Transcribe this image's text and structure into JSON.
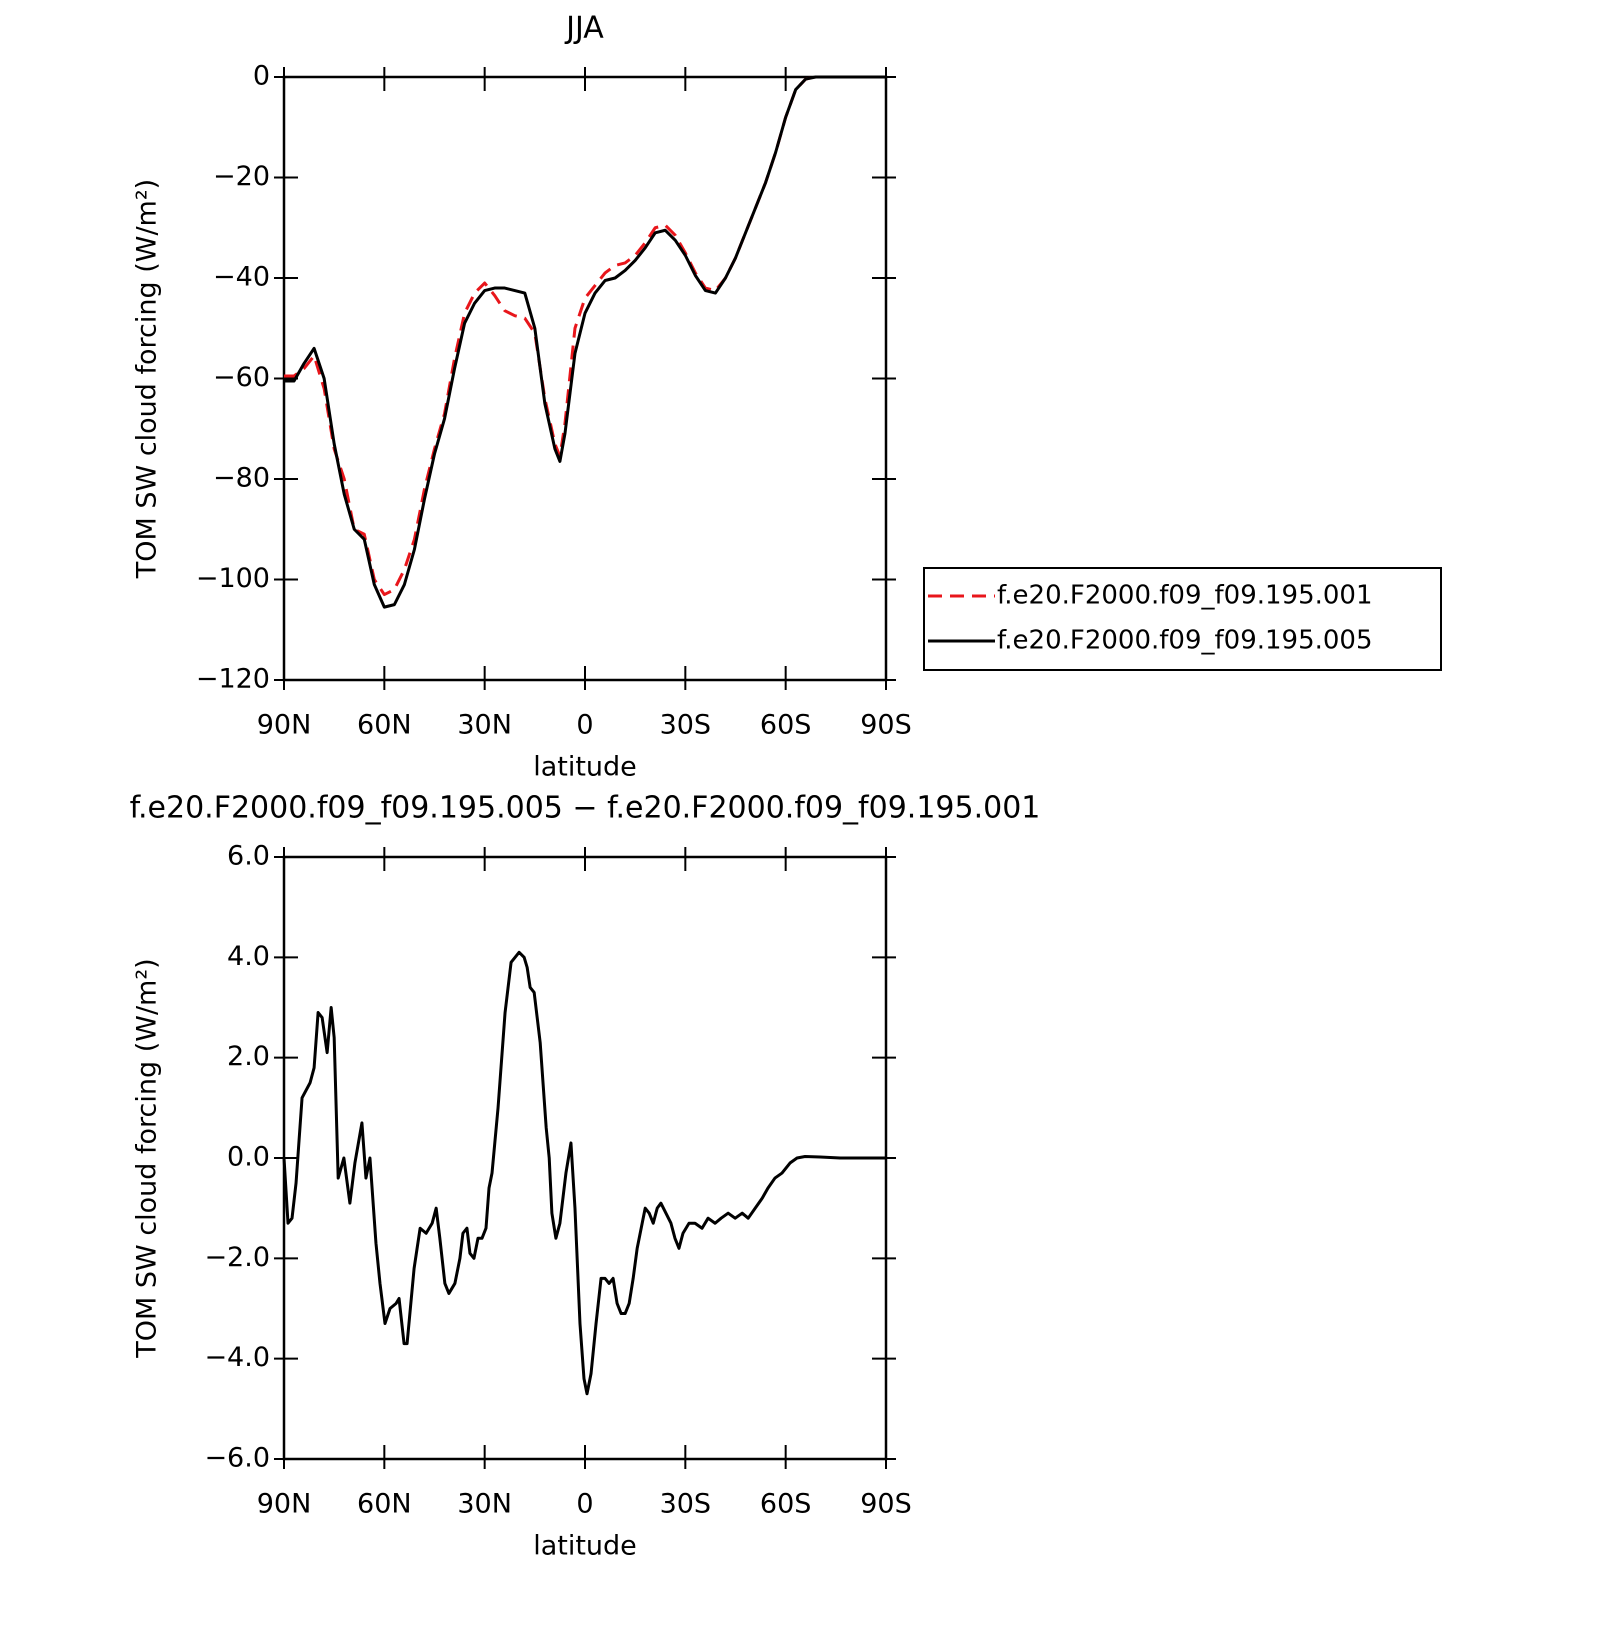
{
  "chart_data": [
    {
      "type": "line",
      "title": "JJA",
      "xlabel": "latitude",
      "ylabel": "TOM SW cloud forcing (W/m²)",
      "xlim": [
        90,
        -90
      ],
      "xticks": [
        {
          "value": 90,
          "label": "90N"
        },
        {
          "value": 60,
          "label": "60N"
        },
        {
          "value": 30,
          "label": "30N"
        },
        0,
        {
          "value": -30,
          "label": "30S"
        },
        {
          "value": -60,
          "label": "60S"
        },
        {
          "value": -90,
          "label": "90S"
        }
      ],
      "ylim": [
        -120,
        0
      ],
      "yticks": [
        {
          "value": -120,
          "label": "−120"
        },
        {
          "value": -100,
          "label": "−100"
        },
        {
          "value": -80,
          "label": "−80"
        },
        {
          "value": -60,
          "label": "−60"
        },
        {
          "value": -40,
          "label": "−40"
        },
        {
          "value": -20,
          "label": "−20"
        },
        0
      ],
      "legend": "right",
      "x": [
        90,
        87,
        84,
        81,
        78,
        75,
        72,
        69,
        66,
        63,
        60,
        57,
        54,
        51,
        48,
        45,
        42,
        39,
        36,
        33,
        30,
        27,
        24,
        21,
        18,
        15,
        12,
        9,
        7.5,
        6,
        3,
        0,
        -3,
        -6,
        -9,
        -12,
        -15,
        -18,
        -21,
        -24,
        -27,
        -30,
        -33,
        -36,
        -39,
        -42,
        -45,
        -48,
        -51,
        -54,
        -57,
        -60,
        -63,
        -66,
        -69,
        -72,
        -75,
        -78,
        -81,
        -84,
        -87,
        -90
      ],
      "series": [
        {
          "name": "f.e20.F2000.f09_f09.195.001",
          "color": "#e8161b",
          "style": "dashed",
          "values": [
            -59.5,
            -59.5,
            -58,
            -55.5,
            -62,
            -74,
            -80,
            -90,
            -91,
            -100,
            -103,
            -102,
            -98,
            -92,
            -82,
            -74,
            -67,
            -56,
            -47,
            -43,
            -41,
            -43.5,
            -46.5,
            -47.5,
            -48,
            -51,
            -64,
            -73,
            -75.5,
            -69,
            -50,
            -44,
            -41.5,
            -39,
            -37.5,
            -37,
            -35.5,
            -33,
            -30,
            -29.5,
            -31.5,
            -35,
            -39,
            -42,
            -42.5,
            -40,
            -36,
            -31,
            -26,
            -21,
            -15,
            -8,
            -2.5,
            -0.4,
            0,
            0,
            0,
            0,
            0,
            0,
            0,
            0
          ]
        },
        {
          "name": "f.e20.F2000.f09_f09.195.005",
          "color": "#000000",
          "style": "solid",
          "values": [
            -60.5,
            -60.5,
            -57,
            -54,
            -60,
            -73,
            -83,
            -90,
            -92,
            -101,
            -105.5,
            -105,
            -101,
            -94,
            -84,
            -75,
            -68,
            -58,
            -49,
            -45,
            -42.5,
            -42,
            -42,
            -42.5,
            -43,
            -50,
            -65,
            -74,
            -76.5,
            -71,
            -55,
            -47,
            -43,
            -40.5,
            -40,
            -38.5,
            -36.5,
            -34,
            -31,
            -30.5,
            -32.5,
            -35.5,
            -39.5,
            -42.5,
            -43,
            -40,
            -36,
            -31,
            -26,
            -21,
            -15,
            -8,
            -2.5,
            -0.4,
            0,
            0,
            0,
            0,
            0,
            0,
            0,
            0
          ]
        }
      ]
    },
    {
      "type": "line",
      "title": "f.e20.F2000.f09_f09.195.005 − f.e20.F2000.f09_f09.195.001",
      "xlabel": "latitude",
      "ylabel": "TOM SW cloud forcing (W/m²)",
      "xlim": [
        90,
        -90
      ],
      "xticks": [
        {
          "value": 90,
          "label": "90N"
        },
        {
          "value": 60,
          "label": "60N"
        },
        {
          "value": 30,
          "label": "30N"
        },
        0,
        {
          "value": -30,
          "label": "30S"
        },
        {
          "value": -60,
          "label": "60S"
        },
        {
          "value": -90,
          "label": "90S"
        }
      ],
      "ylim": [
        -6,
        6
      ],
      "yticks": [
        {
          "value": -6,
          "label": "−6.0"
        },
        {
          "value": -4,
          "label": "−4.0"
        },
        {
          "value": -2,
          "label": "−2.0"
        },
        {
          "value": 0,
          "label": "0.0"
        },
        {
          "value": 2,
          "label": "2.0"
        },
        {
          "value": 4,
          "label": "4.0"
        },
        {
          "value": 6,
          "label": "6.0"
        }
      ],
      "color": "#000000",
      "x": [
        90,
        88.8,
        87.6,
        86.4,
        84.6,
        82.2,
        81.0,
        79.8,
        78.6,
        77.1,
        75.9,
        75.0,
        73.8,
        72.1,
        70.3,
        68.8,
        66.7,
        65.5,
        64.3,
        62.5,
        61.3,
        59.8,
        58.3,
        56.5,
        55.6,
        54.1,
        53.2,
        51.1,
        49.3,
        47.5,
        45.7,
        44.5,
        43.4,
        41.9,
        40.7,
        38.9,
        37.4,
        36.5,
        35.3,
        34.4,
        33.2,
        32.0,
        30.8,
        29.6,
        28.7,
        27.8,
        26.0,
        23.9,
        22.1,
        20.9,
        19.7,
        18.2,
        17.3,
        16.4,
        15.2,
        13.4,
        11.6,
        10.7,
        9.9,
        8.7,
        7.5,
        5.7,
        4.2,
        3.0,
        1.5,
        0.3,
        -0.6,
        -1.8,
        -3.3,
        -4.8,
        -6.0,
        -7.2,
        -8.4,
        -9.6,
        -10.8,
        -12.0,
        -13.2,
        -14.4,
        -15.6,
        -17.1,
        -18.0,
        -19.2,
        -20.4,
        -21.6,
        -22.7,
        -24.2,
        -25.7,
        -26.9,
        -28.1,
        -29.3,
        -31.1,
        -32.9,
        -35.0,
        -36.8,
        -38.9,
        -40.7,
        -42.8,
        -44.9,
        -47.0,
        -48.8,
        -50.9,
        -53.0,
        -54.7,
        -56.8,
        -58.9,
        -61.3,
        -63.4,
        -65.8,
        -70.3,
        -76.3,
        -90
      ],
      "values": [
        0,
        -1.3,
        -1.2,
        -0.5,
        1.2,
        1.5,
        1.8,
        2.9,
        2.8,
        2.1,
        3.0,
        2.4,
        -0.4,
        0.0,
        -0.9,
        -0.1,
        0.7,
        -0.4,
        0.0,
        -1.7,
        -2.5,
        -3.3,
        -3.0,
        -2.9,
        -2.8,
        -3.7,
        -3.7,
        -2.2,
        -1.4,
        -1.5,
        -1.3,
        -1.0,
        -1.6,
        -2.5,
        -2.7,
        -2.5,
        -2.0,
        -1.5,
        -1.4,
        -1.9,
        -2.0,
        -1.6,
        -1.6,
        -1.4,
        -0.6,
        -0.3,
        1.0,
        2.9,
        3.9,
        4.0,
        4.1,
        4.0,
        3.8,
        3.4,
        3.3,
        2.3,
        0.6,
        0.0,
        -1.1,
        -1.6,
        -1.3,
        -0.3,
        0.3,
        -1.0,
        -3.3,
        -4.4,
        -4.7,
        -4.3,
        -3.3,
        -2.4,
        -2.4,
        -2.5,
        -2.4,
        -2.9,
        -3.1,
        -3.1,
        -2.9,
        -2.4,
        -1.8,
        -1.3,
        -1.0,
        -1.1,
        -1.3,
        -1.0,
        -0.9,
        -1.1,
        -1.3,
        -1.6,
        -1.8,
        -1.5,
        -1.3,
        -1.3,
        -1.4,
        -1.2,
        -1.3,
        -1.2,
        -1.1,
        -1.2,
        -1.1,
        -1.2,
        -1.0,
        -0.8,
        -0.6,
        -0.4,
        -0.3,
        -0.1,
        0.0,
        0.03,
        0.02,
        0,
        0
      ]
    }
  ]
}
